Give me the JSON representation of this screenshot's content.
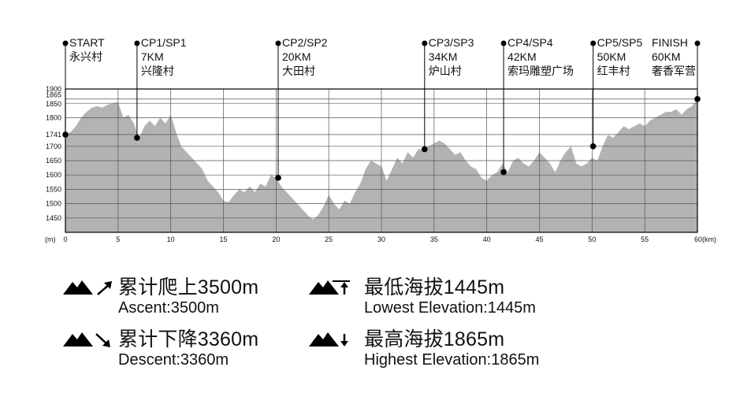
{
  "chart_data": {
    "type": "area",
    "x_unit_label": "(km)",
    "y_unit_label": "(m)",
    "xlim": [
      0,
      60
    ],
    "ylim": [
      1400,
      1900
    ],
    "x_ticks": [
      0,
      5,
      10,
      15,
      20,
      25,
      30,
      35,
      40,
      45,
      50,
      55,
      60
    ],
    "y_ticks": [
      1450,
      1500,
      1550,
      1600,
      1650,
      1700,
      1741,
      1800,
      1850,
      1865,
      1900
    ],
    "grid": true,
    "x": [
      0,
      0.5,
      1,
      1.5,
      2,
      2.5,
      3,
      3.5,
      4,
      4.5,
      5,
      5.5,
      6,
      6.5,
      7,
      7.5,
      8,
      8.5,
      9,
      9.5,
      10,
      10.5,
      11,
      11.5,
      12,
      12.5,
      13,
      13.5,
      14,
      14.5,
      15,
      15.5,
      16,
      16.5,
      17,
      17.5,
      18,
      18.5,
      19,
      19.5,
      20,
      20.5,
      21,
      21.5,
      22,
      22.5,
      23,
      23.5,
      24,
      24.5,
      25,
      25.5,
      26,
      26.5,
      27,
      27.5,
      28,
      28.5,
      29,
      29.5,
      30,
      30.5,
      31,
      31.5,
      32,
      32.5,
      33,
      33.5,
      34,
      34.5,
      35,
      35.5,
      36,
      36.5,
      37,
      37.5,
      38,
      38.5,
      39,
      39.5,
      40,
      40.5,
      41,
      41.5,
      42,
      42.5,
      43,
      43.5,
      44,
      44.5,
      45,
      45.5,
      46,
      46.5,
      47,
      47.5,
      48,
      48.5,
      49,
      49.5,
      50,
      50.5,
      51,
      51.5,
      52,
      52.5,
      53,
      53.5,
      54,
      54.5,
      55,
      55.5,
      56,
      56.5,
      57,
      57.5,
      58,
      58.5,
      59,
      59.5,
      60
    ],
    "y": [
      1741,
      1750,
      1770,
      1800,
      1820,
      1835,
      1840,
      1835,
      1845,
      1850,
      1855,
      1800,
      1810,
      1780,
      1730,
      1770,
      1790,
      1770,
      1800,
      1780,
      1810,
      1750,
      1700,
      1680,
      1660,
      1640,
      1620,
      1580,
      1560,
      1540,
      1510,
      1505,
      1530,
      1550,
      1540,
      1560,
      1540,
      1570,
      1560,
      1600,
      1590,
      1560,
      1540,
      1520,
      1500,
      1480,
      1460,
      1445,
      1460,
      1490,
      1530,
      1500,
      1480,
      1510,
      1500,
      1540,
      1570,
      1620,
      1650,
      1640,
      1630,
      1580,
      1620,
      1660,
      1640,
      1680,
      1660,
      1690,
      1690,
      1700,
      1710,
      1720,
      1710,
      1690,
      1670,
      1680,
      1650,
      1630,
      1620,
      1590,
      1580,
      1600,
      1610,
      1640,
      1610,
      1650,
      1660,
      1640,
      1630,
      1650,
      1680,
      1660,
      1640,
      1610,
      1650,
      1680,
      1700,
      1640,
      1630,
      1640,
      1660,
      1650,
      1700,
      1740,
      1730,
      1750,
      1770,
      1760,
      1770,
      1780,
      1770,
      1790,
      1800,
      1810,
      1820,
      1820,
      1830,
      1810,
      1830,
      1840,
      1865
    ],
    "checkpoints": [
      {
        "label": "START",
        "place": "永兴村",
        "km_label": "",
        "x": 0,
        "elev": 1741
      },
      {
        "label": "CP1/SP1",
        "place": "兴隆村",
        "km_label": "7KM",
        "x": 6.8,
        "elev": 1730
      },
      {
        "label": "CP2/SP2",
        "place": "大田村",
        "km_label": "20KM",
        "x": 20.2,
        "elev": 1590
      },
      {
        "label": "CP3/SP3",
        "place": "炉山村",
        "km_label": "34KM",
        "x": 34.1,
        "elev": 1690
      },
      {
        "label": "CP4/SP4",
        "place": "索玛雕塑广场",
        "km_label": "42KM",
        "x": 41.6,
        "elev": 1610
      },
      {
        "label": "CP5/SP5",
        "place": "红丰村",
        "km_label": "50KM",
        "x": 50.1,
        "elev": 1700
      },
      {
        "label": "FINISH",
        "place": "奢香军营",
        "km_label": "60KM",
        "x": 60,
        "elev": 1865
      }
    ],
    "colors": {
      "area": "#b3b3b3",
      "grid": "#555555",
      "dot": "#000000"
    }
  },
  "stats": [
    {
      "zh": "累计爬上3500m",
      "en": "Ascent:3500m",
      "icon": "mountain-ascent-icon",
      "arrow": "↗"
    },
    {
      "zh": "累计下降3360m",
      "en": "Descent:3360m",
      "icon": "mountain-descent-icon",
      "arrow": "↘"
    },
    {
      "zh": "最低海拔1445m",
      "en": "Lowest Elevation:1445m",
      "icon": "mountain-lowest-icon",
      "arrow": "↑"
    },
    {
      "zh": "最高海拔1865m",
      "en": "Highest Elevation:1865m",
      "icon": "mountain-highest-icon",
      "arrow": "↓"
    }
  ]
}
